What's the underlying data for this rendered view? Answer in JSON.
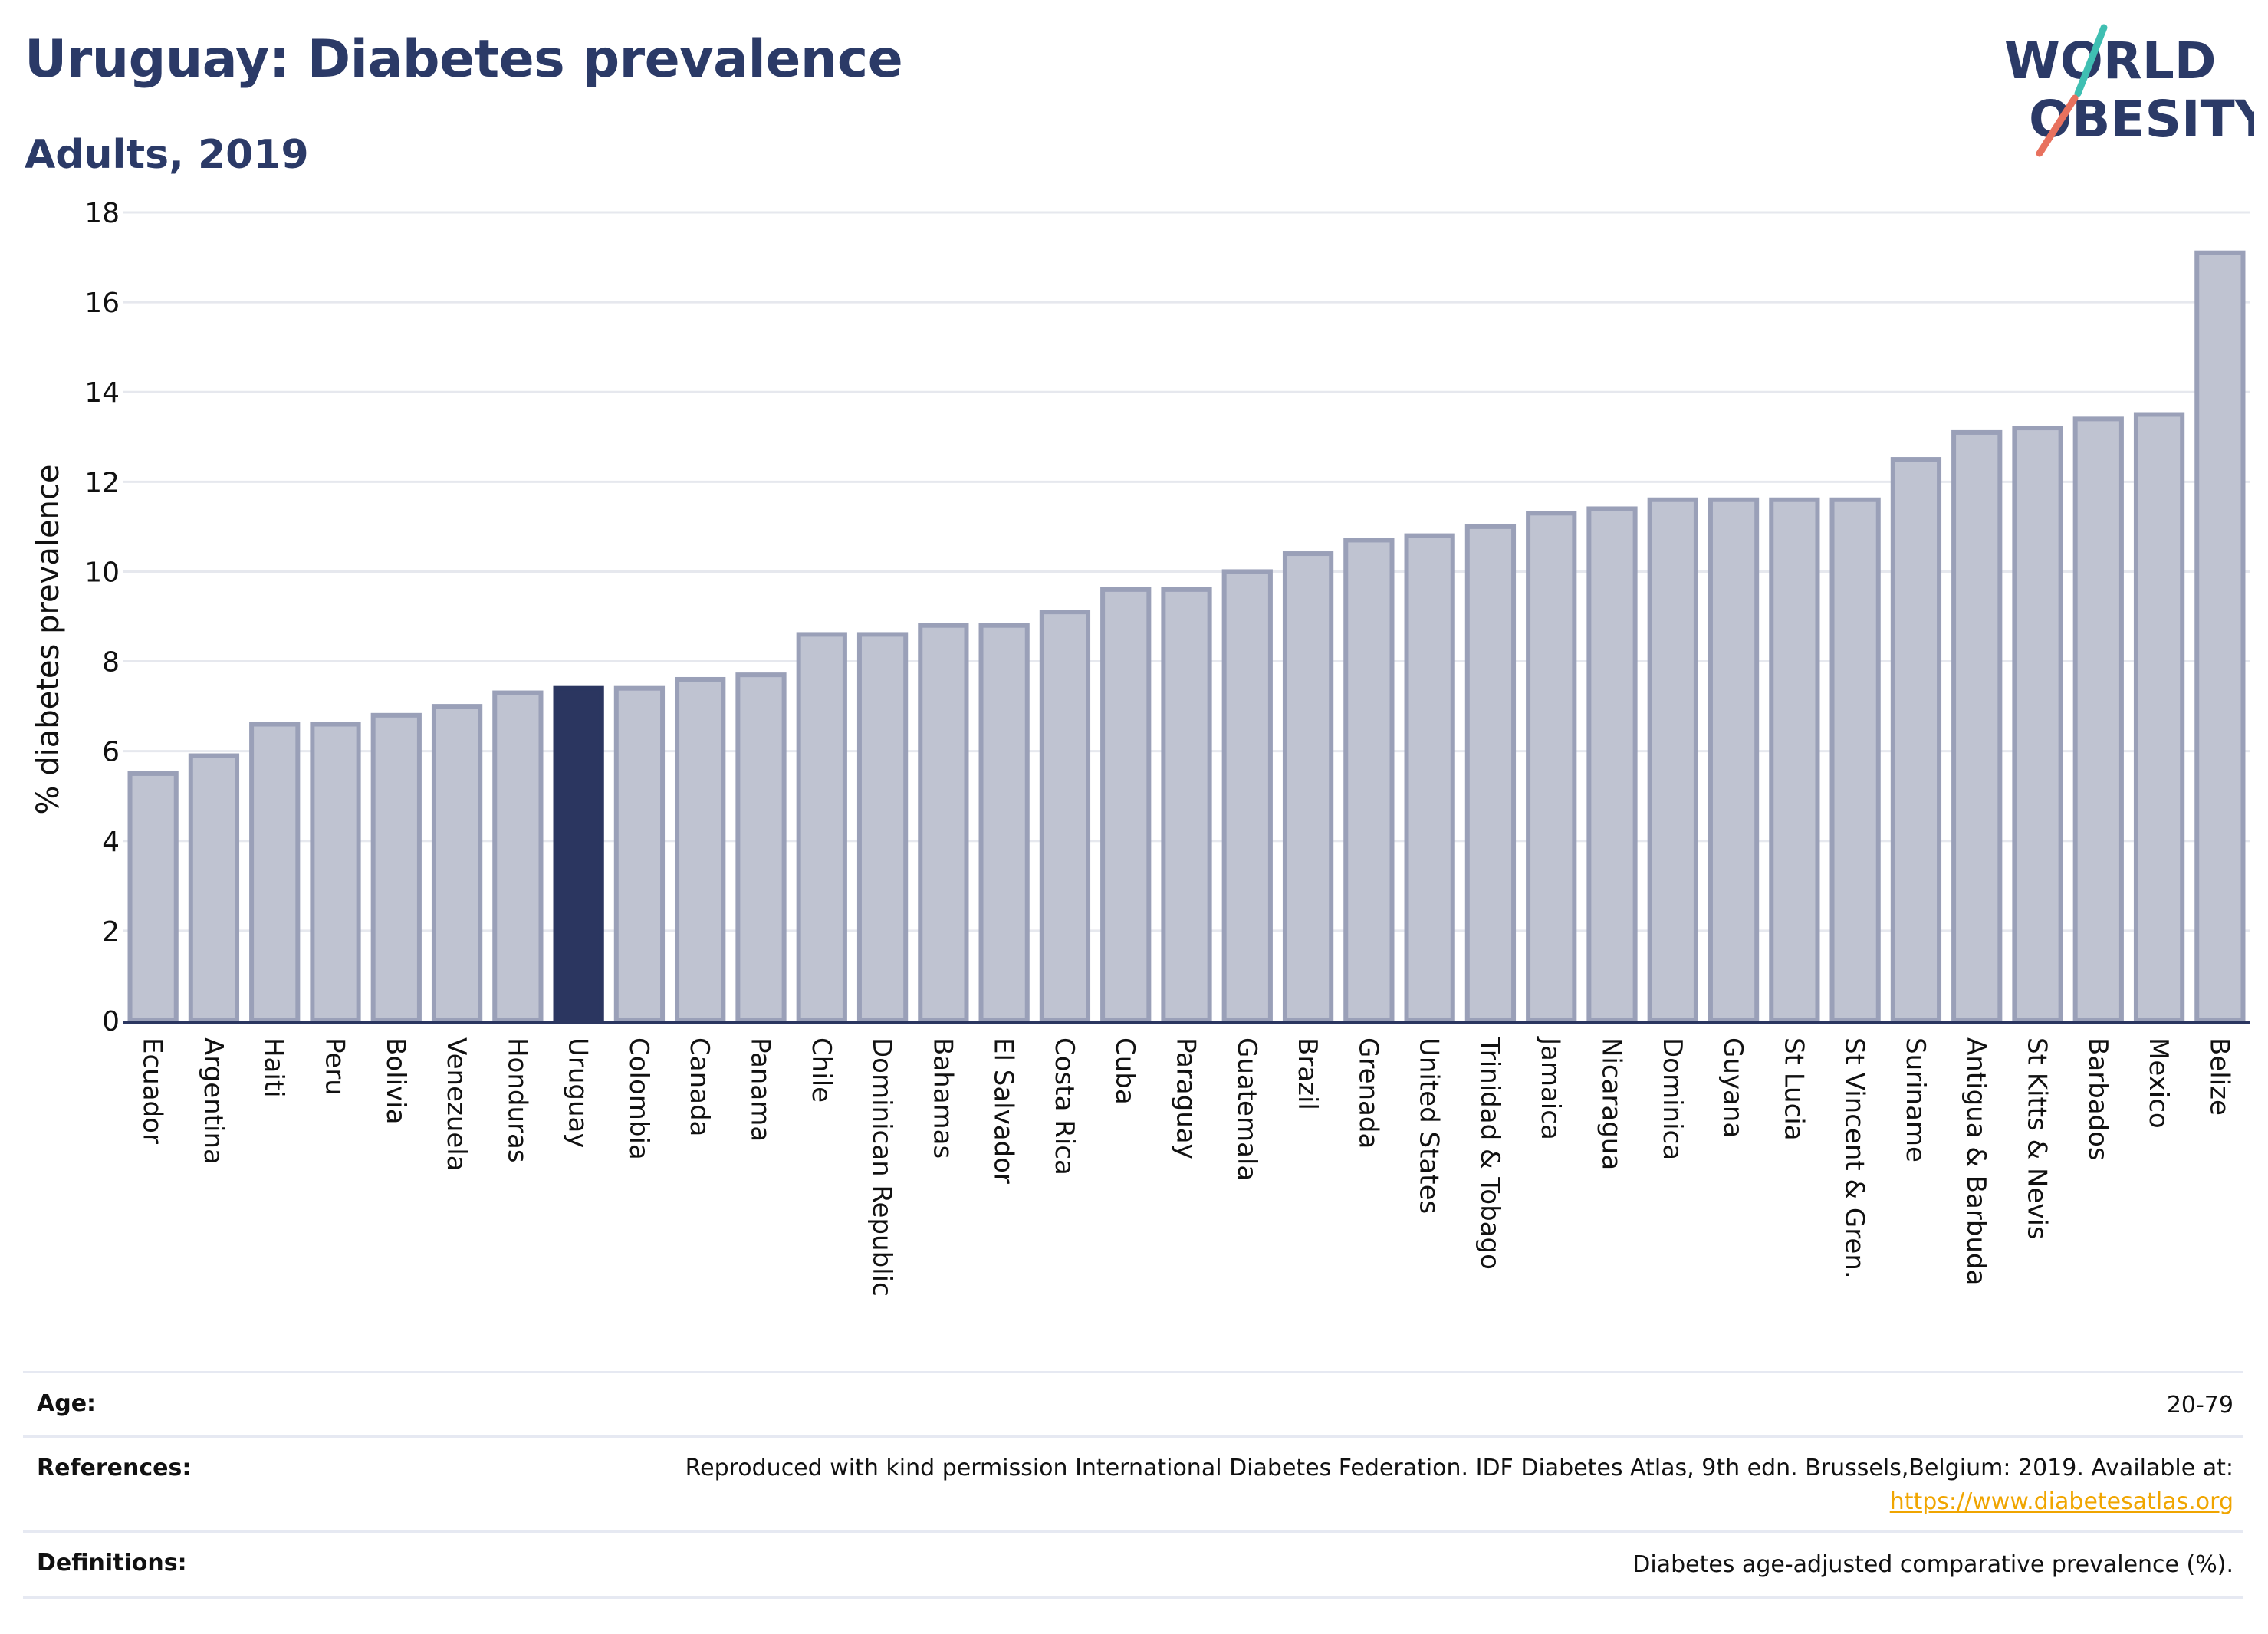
{
  "header": {
    "title": "Uruguay: Diabetes prevalence",
    "subtitle": "Adults, 2019",
    "logo_line1": "WORLD",
    "logo_line2": "OBESITY"
  },
  "colors": {
    "title": "#2b3a67",
    "bar": "#bfc3d1",
    "bar_border": "#9aa0b8",
    "highlight": "#2b3660",
    "link": "#f0a500",
    "logo_teal": "#3fbfb2",
    "logo_red": "#e8715e"
  },
  "chart_data": {
    "type": "bar",
    "ylabel": "% diabetes prevalence",
    "xlabel": "",
    "ylim": [
      0,
      18
    ],
    "yticks": [
      0,
      2,
      4,
      6,
      8,
      10,
      12,
      14,
      16,
      18
    ],
    "grid": "horizontal",
    "highlight": "Uruguay",
    "categories": [
      "Ecuador",
      "Argentina",
      "Haiti",
      "Peru",
      "Bolivia",
      "Venezuela",
      "Honduras",
      "Uruguay",
      "Colombia",
      "Canada",
      "Panama",
      "Chile",
      "Dominican Republic",
      "Bahamas",
      "El Salvador",
      "Costa Rica",
      "Cuba",
      "Paraguay",
      "Guatemala",
      "Brazil",
      "Grenada",
      "United States",
      "Trinidad & Tobago",
      "Jamaica",
      "Nicaragua",
      "Dominica",
      "Guyana",
      "St Lucia",
      "St Vincent & Gren.",
      "Suriname",
      "Antigua & Barbuda",
      "St Kitts & Nevis",
      "Barbados",
      "Mexico",
      "Belize"
    ],
    "values": [
      5.5,
      5.9,
      6.6,
      6.6,
      6.8,
      7.0,
      7.3,
      7.4,
      7.4,
      7.6,
      7.7,
      8.6,
      8.6,
      8.8,
      8.8,
      9.1,
      9.6,
      9.6,
      10.0,
      10.4,
      10.7,
      10.8,
      11.0,
      11.3,
      11.4,
      11.6,
      11.6,
      11.6,
      11.6,
      12.5,
      13.1,
      13.2,
      13.4,
      13.5,
      17.1
    ]
  },
  "meta": {
    "age_label": "Age:",
    "age_value": "20-79",
    "references_label": "References:",
    "references_text": "Reproduced with kind permission International Diabetes Federation. IDF Diabetes Atlas, 9th edn. Brussels,Belgium: 2019. Available at:",
    "references_link": "https://www.diabetesatlas.org",
    "definitions_label": "Definitions:",
    "definitions_value": "Diabetes age-adjusted comparative prevalence (%)."
  }
}
